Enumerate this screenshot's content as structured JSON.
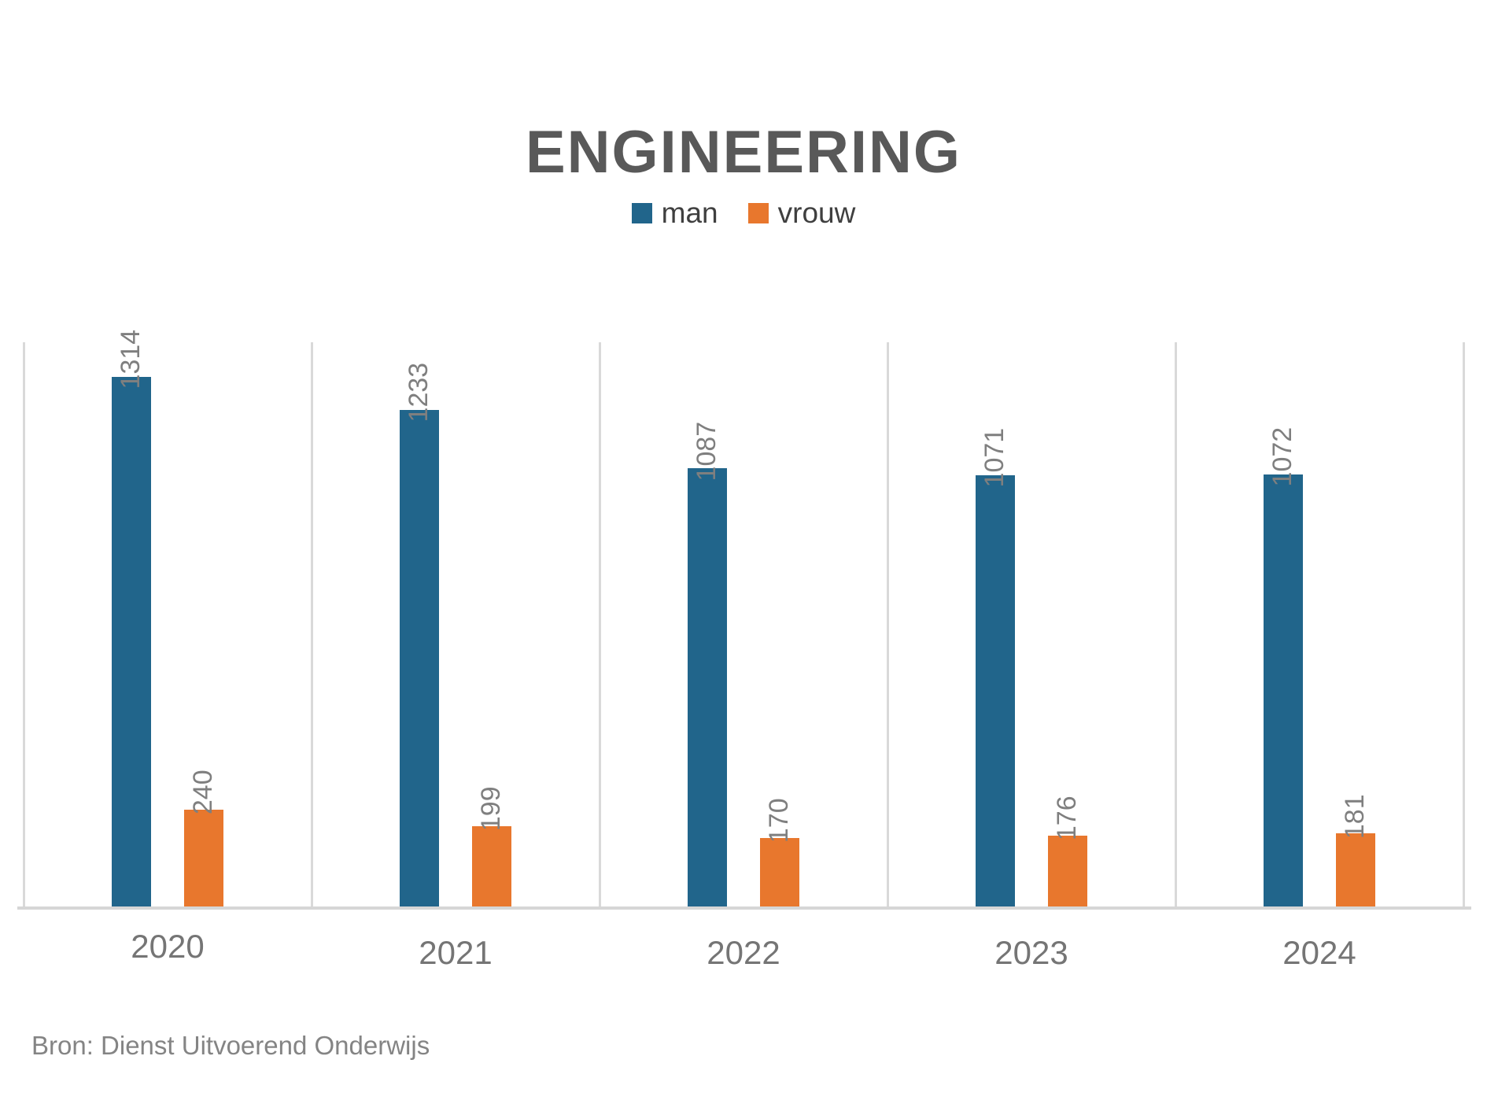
{
  "title": "ENGINEERING",
  "source": "Bron: Dienst Uitvoerend Onderwijs",
  "legend": [
    {
      "label": "man",
      "color": "#21658B"
    },
    {
      "label": "vrouw",
      "color": "#E8772D"
    }
  ],
  "colors": {
    "man_bar": "#21658B",
    "vrouw_bar": "#E8772D",
    "gridline": "#D9D9D9",
    "title_text": "#595959",
    "data_label_text": "#7F7F7F",
    "axis_text": "#757575",
    "source_text": "#848484"
  },
  "chart_data": {
    "type": "bar",
    "title": "ENGINEERING",
    "categories": [
      "2020",
      "2021",
      "2022",
      "2023",
      "2024"
    ],
    "series": [
      {
        "name": "man",
        "color": "#21658B",
        "values": [
          1314,
          1233,
          1087,
          1071,
          1072
        ]
      },
      {
        "name": "vrouw",
        "color": "#E8772D",
        "values": [
          240,
          199,
          170,
          176,
          181
        ]
      }
    ],
    "xlabel": "",
    "ylabel": "",
    "ylim": [
      0,
      1400
    ],
    "grid": "vertical-category-separators",
    "legend_position": "top-center",
    "data_labels": "rotated-90-above-bars",
    "y_axis_visible": false
  }
}
